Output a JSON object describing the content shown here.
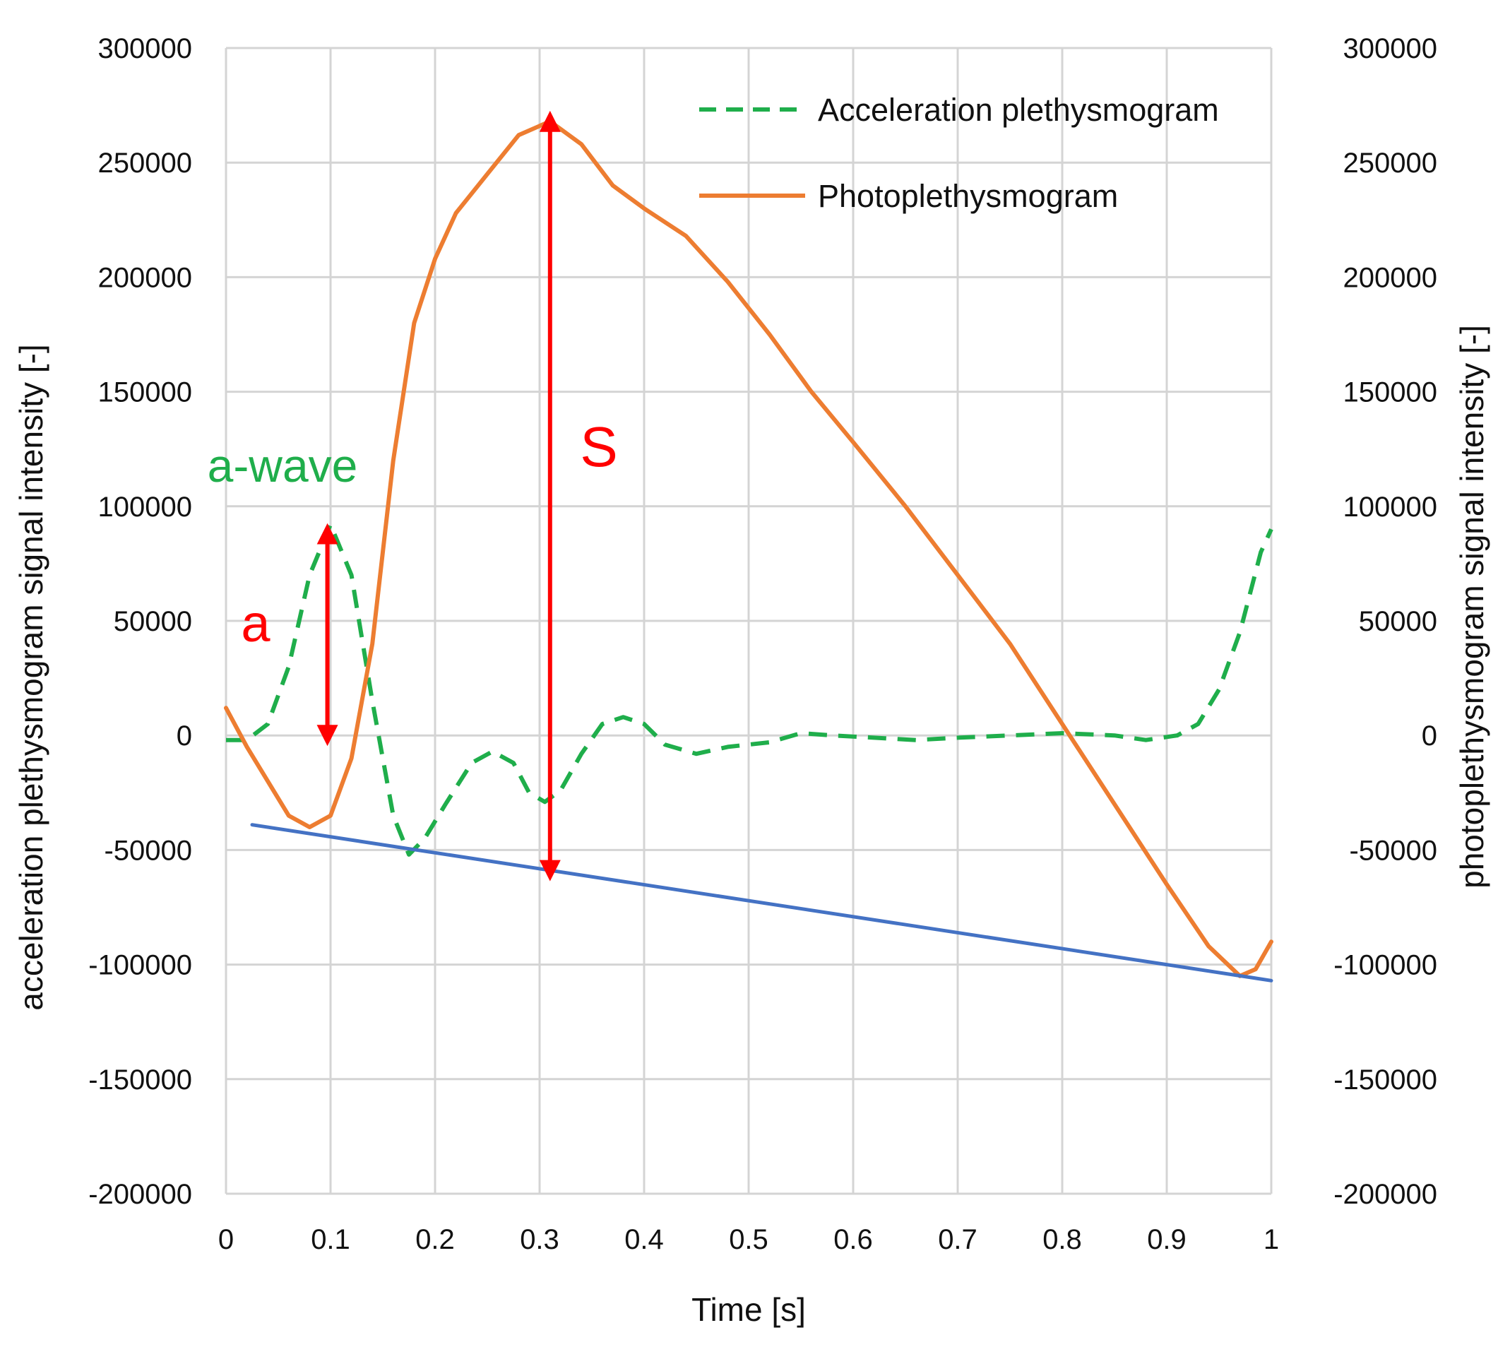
{
  "chart_data": {
    "type": "line",
    "xlabel": "Time [s]",
    "ylabel_left": "acceleration plethysmogram signal intensity [-]",
    "ylabel_right": "photoplethysmogram signal intensity [-]",
    "xlim": [
      0,
      1
    ],
    "ylim_left": [
      -200000,
      300000
    ],
    "ylim_right": [
      -200000,
      300000
    ],
    "x_ticks": [
      "0",
      "0.1",
      "0.2",
      "0.3",
      "0.4",
      "0.5",
      "0.6",
      "0.7",
      "0.8",
      "0.9",
      "1"
    ],
    "y_ticks": [
      "300000",
      "250000",
      "200000",
      "150000",
      "100000",
      "50000",
      "0",
      "-50000",
      "-100000",
      "-150000",
      "-200000"
    ],
    "grid": true,
    "legend_position": "top-right",
    "series": [
      {
        "name": "Acceleration plethysmogram",
        "axis": "left",
        "style": "dashed",
        "color": "#1fae4b",
        "points": [
          [
            0.0,
            -2000
          ],
          [
            0.02,
            -2000
          ],
          [
            0.04,
            5000
          ],
          [
            0.06,
            30000
          ],
          [
            0.08,
            70000
          ],
          [
            0.1,
            92000
          ],
          [
            0.12,
            70000
          ],
          [
            0.14,
            15000
          ],
          [
            0.16,
            -35000
          ],
          [
            0.175,
            -52000
          ],
          [
            0.19,
            -45000
          ],
          [
            0.21,
            -30000
          ],
          [
            0.235,
            -12000
          ],
          [
            0.255,
            -7000
          ],
          [
            0.275,
            -12000
          ],
          [
            0.29,
            -25000
          ],
          [
            0.305,
            -29000
          ],
          [
            0.32,
            -24000
          ],
          [
            0.34,
            -8000
          ],
          [
            0.36,
            5000
          ],
          [
            0.38,
            8000
          ],
          [
            0.4,
            5000
          ],
          [
            0.42,
            -4000
          ],
          [
            0.45,
            -8000
          ],
          [
            0.48,
            -5000
          ],
          [
            0.52,
            -3000
          ],
          [
            0.55,
            1000
          ],
          [
            0.58,
            0
          ],
          [
            0.62,
            -1000
          ],
          [
            0.66,
            -2000
          ],
          [
            0.7,
            -1000
          ],
          [
            0.75,
            0
          ],
          [
            0.8,
            1000
          ],
          [
            0.85,
            0
          ],
          [
            0.88,
            -2000
          ],
          [
            0.91,
            0
          ],
          [
            0.93,
            5000
          ],
          [
            0.95,
            20000
          ],
          [
            0.97,
            45000
          ],
          [
            0.99,
            80000
          ],
          [
            1.0,
            90000
          ]
        ]
      },
      {
        "name": "Photoplethysmogram",
        "axis": "right",
        "style": "solid",
        "color": "#ed7d31",
        "points": [
          [
            0.0,
            12000
          ],
          [
            0.02,
            -5000
          ],
          [
            0.04,
            -20000
          ],
          [
            0.06,
            -35000
          ],
          [
            0.08,
            -40000
          ],
          [
            0.1,
            -35000
          ],
          [
            0.12,
            -10000
          ],
          [
            0.14,
            40000
          ],
          [
            0.16,
            120000
          ],
          [
            0.18,
            180000
          ],
          [
            0.2,
            208000
          ],
          [
            0.22,
            228000
          ],
          [
            0.25,
            245000
          ],
          [
            0.28,
            262000
          ],
          [
            0.31,
            268000
          ],
          [
            0.34,
            258000
          ],
          [
            0.37,
            240000
          ],
          [
            0.4,
            230000
          ],
          [
            0.44,
            218000
          ],
          [
            0.48,
            198000
          ],
          [
            0.52,
            175000
          ],
          [
            0.56,
            150000
          ],
          [
            0.6,
            128000
          ],
          [
            0.65,
            100000
          ],
          [
            0.7,
            70000
          ],
          [
            0.75,
            40000
          ],
          [
            0.8,
            5000
          ],
          [
            0.85,
            -30000
          ],
          [
            0.9,
            -65000
          ],
          [
            0.94,
            -92000
          ],
          [
            0.97,
            -105000
          ],
          [
            0.985,
            -102000
          ],
          [
            1.0,
            -90000
          ]
        ]
      },
      {
        "axis": "right",
        "style": "solid",
        "color": "#4472c4",
        "points": [
          [
            0.025,
            -39000
          ],
          [
            1.0,
            -107000
          ]
        ]
      }
    ],
    "annotations": {
      "a_wave_label": "a-wave",
      "a_label": "a",
      "s_label": "S",
      "a_arrow": {
        "x": 0.097,
        "y_from": 88000,
        "y_to": 0
      },
      "s_arrow": {
        "x": 0.31,
        "y_from": 268000,
        "y_to": -59000
      },
      "arrow_color": "#ff0000",
      "a_wave_color": "#1fae4b"
    }
  }
}
